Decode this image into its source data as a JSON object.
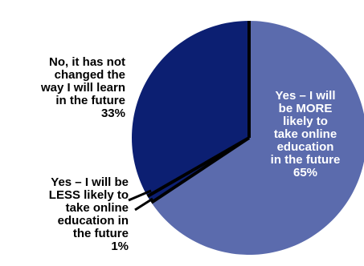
{
  "chart_data": {
    "type": "pie",
    "slices": [
      {
        "name": "Yes – I will be MORE likely to take online education in the future",
        "value": 65,
        "value_label": "65%",
        "color": "#5b6bad",
        "label_lines": [
          "Yes – I will",
          "be MORE",
          "likely to",
          "take online",
          "education",
          "in the future",
          "65%"
        ]
      },
      {
        "name": "Yes – I will be LESS likely to take online education in the future",
        "value": 1,
        "value_label": "1%",
        "color": "#0c1f72",
        "label_lines": [
          "Yes – I will be",
          "LESS likely to",
          "take online",
          "education in",
          "the future",
          "1%"
        ]
      },
      {
        "name": "No, it has not changed the way I will learn in the future",
        "value": 33,
        "value_label": "33%",
        "color": "#0c1f72",
        "label_lines": [
          "No, it has not",
          "changed the",
          "way I will learn",
          "in the future",
          "33%"
        ]
      }
    ],
    "start": "top",
    "direction": "clockwise"
  }
}
